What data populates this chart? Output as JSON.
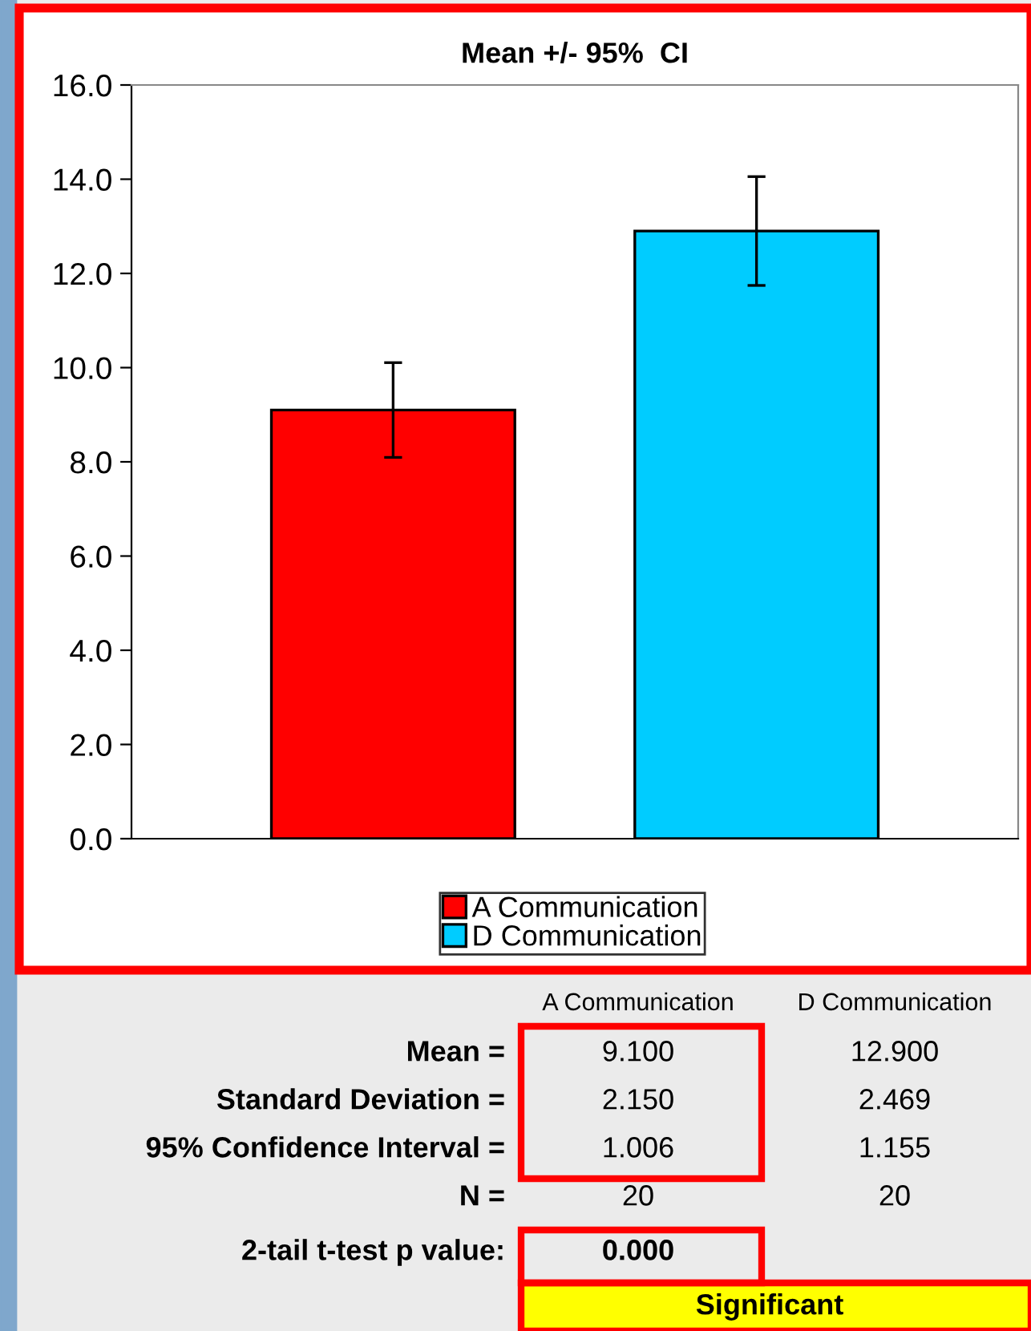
{
  "chart_data": {
    "type": "bar",
    "title": "Mean +/- 95%  CI",
    "categories": [
      null,
      null
    ],
    "series": [
      {
        "name": "A Communication",
        "color": "#ff0000",
        "values": [
          9.1,
          null
        ],
        "errors": [
          1.006,
          null
        ]
      },
      {
        "name": "D Communication",
        "color": "#00ccff",
        "values": [
          null,
          12.9
        ],
        "errors": [
          null,
          1.155
        ]
      }
    ],
    "ylim": [
      0,
      16
    ],
    "yticks": [
      {
        "value": 0,
        "label": "0.0"
      },
      {
        "value": 2,
        "label": "2.0"
      },
      {
        "value": 4,
        "label": "4.0"
      },
      {
        "value": 6,
        "label": "6.0"
      },
      {
        "value": 8,
        "label": "8.0"
      },
      {
        "value": 10,
        "label": "10.0"
      },
      {
        "value": 12,
        "label": "12.0"
      },
      {
        "value": 14,
        "label": "14.0"
      },
      {
        "value": 16,
        "label": "16.0"
      }
    ],
    "legend": "bottom",
    "annotations": [
      "Mean =",
      "9.100",
      "12.900",
      "Standard Deviation =",
      "2.150",
      "2.469",
      "95% Confidence Interval =",
      "1.006",
      "1.155",
      "N =",
      "20",
      "20",
      "2-tail t-test p value:",
      "0.000",
      "Significant"
    ]
  }
}
